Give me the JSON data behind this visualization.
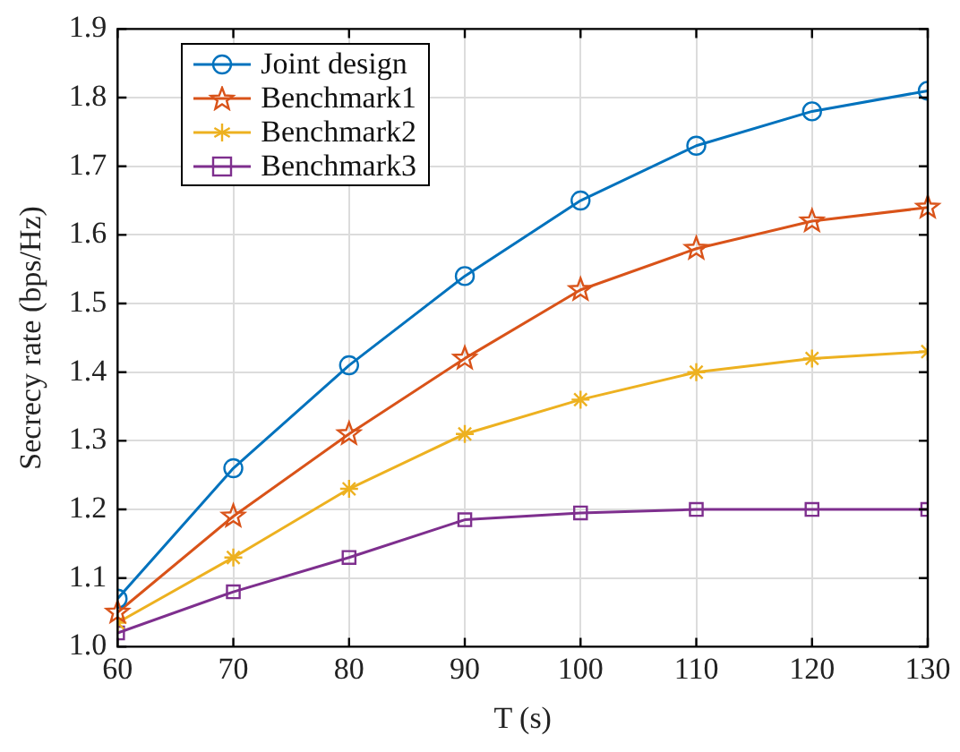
{
  "chart_data": {
    "type": "line",
    "xlabel": "T (s)",
    "ylabel": "Secrecy rate (bps/Hz)",
    "x": [
      60,
      70,
      80,
      90,
      100,
      110,
      120,
      130
    ],
    "series": [
      {
        "name": "Joint design",
        "color": "#0072bd",
        "marker": "circle",
        "values": [
          1.07,
          1.26,
          1.41,
          1.54,
          1.65,
          1.73,
          1.78,
          1.81
        ]
      },
      {
        "name": "Benchmark1",
        "color": "#d95319",
        "marker": "star",
        "values": [
          1.05,
          1.19,
          1.31,
          1.42,
          1.52,
          1.58,
          1.62,
          1.64
        ]
      },
      {
        "name": "Benchmark2",
        "color": "#edb120",
        "marker": "cross",
        "values": [
          1.035,
          1.13,
          1.23,
          1.31,
          1.36,
          1.4,
          1.42,
          1.43
        ]
      },
      {
        "name": "Benchmark3",
        "color": "#7e2f8e",
        "marker": "square",
        "values": [
          1.02,
          1.08,
          1.13,
          1.185,
          1.195,
          1.2,
          1.2,
          1.2
        ]
      }
    ],
    "xlim": [
      60,
      130
    ],
    "xticks": [
      60,
      70,
      80,
      90,
      100,
      110,
      120,
      130
    ],
    "ylim": [
      1.0,
      1.9
    ],
    "yticks": [
      {
        "value": 1.0,
        "label": "1.0"
      },
      1.1,
      1.2,
      1.3,
      1.4,
      1.5,
      1.6,
      1.7,
      1.8,
      1.9
    ],
    "grid": true,
    "legend": "top left",
    "line_style": "solid"
  }
}
